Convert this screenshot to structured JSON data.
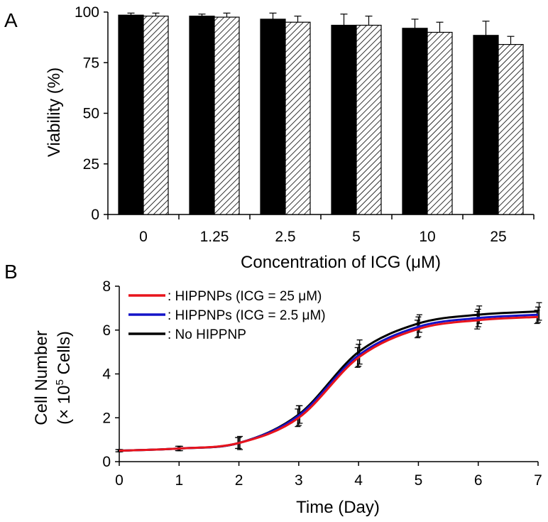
{
  "chart_data": [
    {
      "panel": "A",
      "type": "bar",
      "title": "",
      "xlabel": "Concentration of ICG (μM)",
      "ylabel": "Viability (%)",
      "ylim": [
        0,
        100
      ],
      "yticks": [
        "0",
        "25",
        "50",
        "75",
        "100"
      ],
      "categories": [
        "0",
        "1.25",
        "2.5",
        "5",
        "10",
        "25"
      ],
      "series": [
        {
          "name": "solid",
          "fill": "#000000",
          "values": [
            98.5,
            98,
            96.5,
            93.5,
            92,
            88.5
          ],
          "errors": [
            1.0,
            1.0,
            3.0,
            5.5,
            4.5,
            7.0
          ]
        },
        {
          "name": "hatched",
          "fill": "hatch",
          "values": [
            98,
            97.5,
            95,
            93.5,
            90,
            84
          ],
          "errors": [
            1.5,
            2.0,
            3.0,
            4.5,
            5.0,
            4.0
          ]
        }
      ]
    },
    {
      "panel": "B",
      "type": "line",
      "title": "",
      "xlabel": "Time (Day)",
      "ylabel_line1": "Cell Number",
      "ylabel_line2_prefix": "(× 10",
      "ylabel_sup": "5",
      "ylabel_line2_suffix": " Cells)",
      "xlim": [
        0,
        7
      ],
      "ylim": [
        0,
        8
      ],
      "xticks": [
        "0",
        "1",
        "2",
        "3",
        "4",
        "5",
        "6",
        "7"
      ],
      "yticks": [
        "0",
        "2",
        "4",
        "6",
        "8"
      ],
      "x": [
        0,
        1,
        2,
        3,
        4,
        5,
        6,
        7
      ],
      "series": [
        {
          "name": "HIPPNPs (ICG = 25 μM)",
          "color": "#e8141c",
          "points": [
            0.5,
            0.6,
            0.85,
            2.0,
            4.75,
            6.05,
            6.45,
            6.6
          ],
          "errors": [
            0.05,
            0.1,
            0.25,
            0.4,
            0.45,
            0.4,
            0.4,
            0.3
          ]
        },
        {
          "name": "HIPPNPs (ICG = 2.5 μM)",
          "color": "#1414c8",
          "points": [
            0.5,
            0.6,
            0.85,
            2.1,
            4.85,
            6.15,
            6.55,
            6.7
          ],
          "errors": [
            0.05,
            0.1,
            0.25,
            0.45,
            0.5,
            0.45,
            0.4,
            0.35
          ]
        },
        {
          "name": "No HIPPNP",
          "color": "#000000",
          "points": [
            0.5,
            0.6,
            0.85,
            2.15,
            5.0,
            6.3,
            6.7,
            6.85
          ],
          "errors": [
            0.05,
            0.1,
            0.3,
            0.4,
            0.55,
            0.4,
            0.4,
            0.4
          ]
        }
      ],
      "legend_prefix": ": ",
      "legend_position": "top-left"
    }
  ]
}
